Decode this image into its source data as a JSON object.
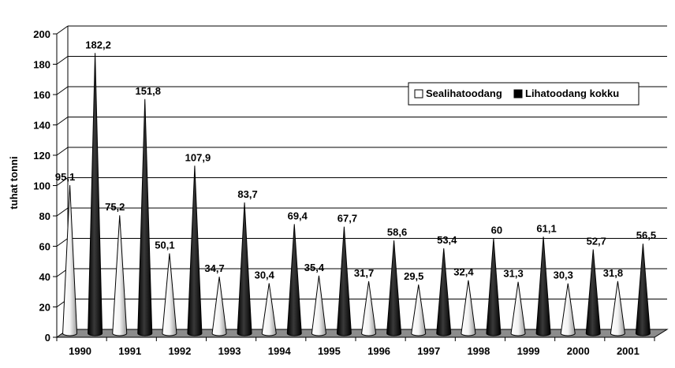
{
  "chart_data": {
    "type": "bar",
    "title": "",
    "xlabel": "",
    "ylabel": "tuhat tonni",
    "ylim": [
      0,
      200
    ],
    "ytick_step": 20,
    "grid": true,
    "legend_position": "top-right",
    "categories": [
      "1990",
      "1991",
      "1992",
      "1993",
      "1994",
      "1995",
      "1996",
      "1997",
      "1998",
      "1999",
      "2000",
      "2001"
    ],
    "series": [
      {
        "name": "Sealihatoodang",
        "color": "#f2f2f2",
        "values": [
          95.1,
          75.2,
          50.1,
          34.7,
          30.4,
          35.4,
          31.7,
          29.5,
          32.4,
          31.3,
          30.3,
          31.8
        ],
        "labels": [
          "95,1",
          "75,2",
          "50,1",
          "34,7",
          "30,4",
          "35,4",
          "31,7",
          "29,5",
          "32,4",
          "31,3",
          "30,3",
          "31,8"
        ]
      },
      {
        "name": "Lihatoodang kokku",
        "color": "#000000",
        "values": [
          182.2,
          151.8,
          107.9,
          83.7,
          69.4,
          67.7,
          58.6,
          53.4,
          60,
          61.1,
          52.7,
          56.5
        ],
        "labels": [
          "182,2",
          "151,8",
          "107,9",
          "83,7",
          "69,4",
          "67,7",
          "58,6",
          "53,4",
          "60",
          "61,1",
          "52,7",
          "56,5"
        ]
      }
    ]
  }
}
